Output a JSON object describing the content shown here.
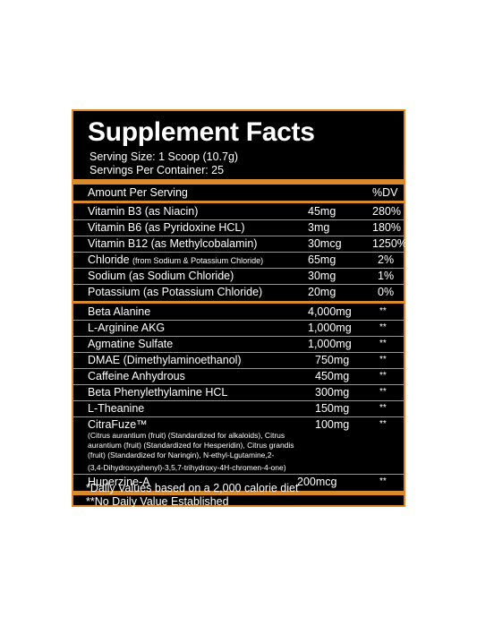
{
  "colors": {
    "accent": "#d98a2b",
    "panel": "#000000",
    "text": "#ffffff"
  },
  "title": "Supplement Facts",
  "serving_size": "Serving Size: 1 Scoop (10.7g)",
  "servings_per_container": "Servings Per Container: 25",
  "header": {
    "amount": "Amount Per Serving",
    "dv": "%DV"
  },
  "rows": [
    {
      "name": "Vitamin B3 (as Niacin)",
      "amount": "45mg",
      "dv": "280%"
    },
    {
      "name": "Vitamin B6 (as Pyridoxine HCL)",
      "amount": "3mg",
      "dv": "180%"
    },
    {
      "name": "Vitamin B12 (as Methylcobalamin)",
      "amount": "30mcg",
      "dv": "1250%"
    },
    {
      "name": "Chloride",
      "name_note": "(from Sodium & Potassium Chloride)",
      "amount": "65mg",
      "dv": "2%"
    },
    {
      "name": "Sodium (as Sodium Chloride)",
      "amount": "30mg",
      "dv": "1%"
    },
    {
      "name": "Potassium (as Potassium Chloride)",
      "amount": "20mg",
      "dv": "0%"
    },
    {
      "name": "Beta Alanine",
      "amount": "4,000mg",
      "dv": "**"
    },
    {
      "name": "L-Arginine AKG",
      "amount": "1,000mg",
      "dv": "**"
    },
    {
      "name": "Agmatine Sulfate",
      "amount": "1,000mg",
      "dv": "**"
    },
    {
      "name": "DMAE (Dimethylaminoethanol)",
      "amount": "750mg",
      "dv": "**"
    },
    {
      "name": "Caffeine Anhydrous",
      "amount": "450mg",
      "dv": "**"
    },
    {
      "name": "Beta Phenylethylamine HCL",
      "amount": "300mg",
      "dv": "**"
    },
    {
      "name": "L-Theanine",
      "amount": "150mg",
      "dv": "**"
    },
    {
      "name": "CitraFuze™",
      "amount": "100mg",
      "dv": "**",
      "note_lines": [
        "(Citrus aurantium (fruit) (Standardized for alkaloids), Citrus",
        "aurantium (fruit) (Standardized for Hesperidin), Citrus grandis",
        "(fruit) (Standardized for Naringin), N-ethyl-Lgutamine,2-",
        "(3,4-Dihydroxyphenyl)-3,5,7-trihydroxy-4H-chromen-4-one)"
      ]
    },
    {
      "name": "Huperzine-A",
      "amount": "200mcg",
      "dv": "**"
    }
  ],
  "footnotes": [
    "*Daily Values based on a 2,000 calorie diet",
    "**No Daily Value Established"
  ]
}
